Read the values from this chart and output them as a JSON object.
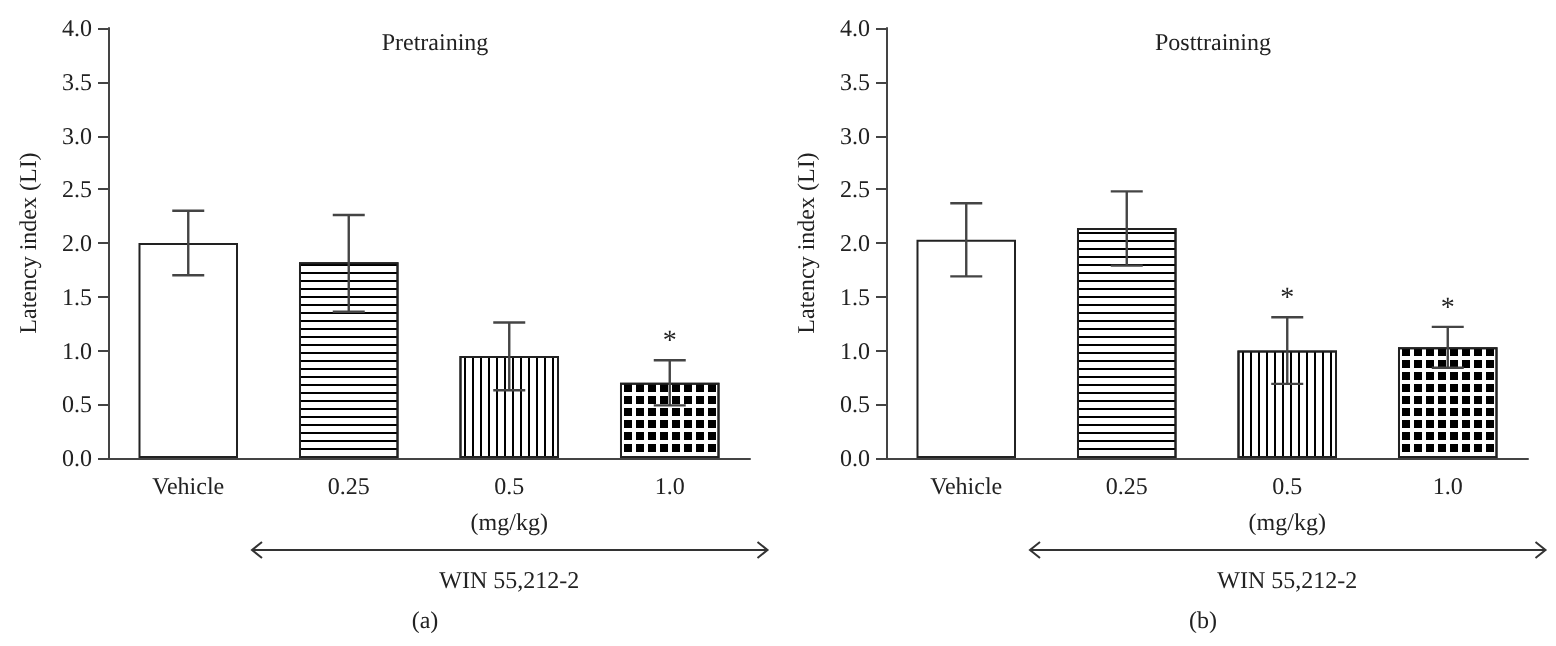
{
  "chart_data": [
    {
      "type": "bar",
      "title": "Pretraining",
      "ylabel": "Latency index (LI)",
      "categories": [
        "Vehicle",
        "0.25",
        "0.5",
        "1.0"
      ],
      "values": [
        2.0,
        1.82,
        0.95,
        0.7
      ],
      "errors": [
        [
          1.7,
          2.3
        ],
        [
          1.36,
          2.26
        ],
        [
          0.63,
          1.26
        ],
        [
          0.49,
          0.91
        ]
      ],
      "colors": [
        "#ffffff",
        "#ffffff",
        "#ffffff",
        "#ffffff"
      ],
      "ylim": [
        0,
        4
      ],
      "yticks": [
        {
          "value": 0,
          "label": "0.0"
        },
        {
          "value": 0.5,
          "label": "0.5"
        },
        {
          "value": 1,
          "label": "1.0"
        },
        {
          "value": 1.5,
          "label": "1.5"
        },
        {
          "value": 2,
          "label": "2.0"
        },
        {
          "value": 2.5,
          "label": "2.5"
        },
        {
          "value": 3,
          "label": "3.0"
        },
        {
          "value": 3.5,
          "label": "3.5"
        },
        {
          "value": 4,
          "label": "4.0"
        }
      ],
      "annotations": [
        "(mg/kg)",
        "WIN 55,212-2",
        "(a)",
        {
          "text": "*",
          "x": "1.0",
          "y": 0.91
        }
      ]
    },
    {
      "type": "bar",
      "title": "Posttraining",
      "ylabel": "Latency index (LI)",
      "categories": [
        "Vehicle",
        "0.25",
        "0.5",
        "1.0"
      ],
      "values": [
        2.03,
        2.14,
        1.0,
        1.03
      ],
      "errors": [
        [
          1.69,
          2.37
        ],
        [
          1.79,
          2.48
        ],
        [
          0.69,
          1.31
        ],
        [
          0.84,
          1.22
        ]
      ],
      "colors": [
        "#ffffff",
        "#ffffff",
        "#ffffff",
        "#ffffff"
      ],
      "ylim": [
        0,
        4
      ],
      "yticks": [
        {
          "value": 0,
          "label": "0.0"
        },
        {
          "value": 0.5,
          "label": "0.5"
        },
        {
          "value": 1,
          "label": "1.0"
        },
        {
          "value": 1.5,
          "label": "1.5"
        },
        {
          "value": 2,
          "label": "2.0"
        },
        {
          "value": 2.5,
          "label": "2.5"
        },
        {
          "value": 3,
          "label": "3.0"
        },
        {
          "value": 3.5,
          "label": "3.5"
        },
        {
          "value": 4,
          "label": "4.0"
        }
      ],
      "annotations": [
        "(mg/kg)",
        "WIN 55,212-2",
        "(b)",
        {
          "text": "*",
          "x": "0.5",
          "y": 1.31
        },
        {
          "text": "*",
          "x": "1.0",
          "y": 1.22
        }
      ]
    }
  ]
}
